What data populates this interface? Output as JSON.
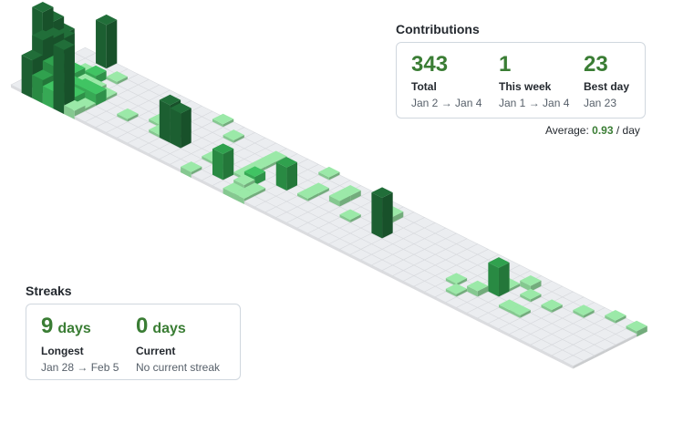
{
  "contributions": {
    "title": "Contributions",
    "total": {
      "value": "343",
      "label": "Total",
      "range": "Jan 2 → Jan 4"
    },
    "this_week": {
      "value": "1",
      "label": "This week",
      "range": "Jan 1 → Jan 4"
    },
    "best_day": {
      "value": "23",
      "label": "Best day",
      "date": "Jan 23"
    },
    "average": {
      "label": "Average:",
      "value": "0.93",
      "unit": "/ day"
    }
  },
  "streaks": {
    "title": "Streaks",
    "longest": {
      "value": "9",
      "unit": "days",
      "label": "Longest",
      "range": "Jan 28 → Feb 5"
    },
    "current": {
      "value": "0",
      "unit": "days",
      "label": "Current",
      "range": "No current streak"
    }
  },
  "colors": {
    "empty": "#ebedf0",
    "level1": "#9be9a8",
    "level2": "#40c463",
    "level3": "#30a14e",
    "level4": "#216e39"
  },
  "chart_data": {
    "type": "heatmap",
    "weeks": 53,
    "days_per_week": 7,
    "cells": [
      [
        0,
        2,
        23
      ],
      [
        0,
        3,
        18
      ],
      [
        0,
        4,
        12
      ],
      [
        1,
        0,
        12
      ],
      [
        1,
        1,
        17
      ],
      [
        1,
        2,
        16
      ],
      [
        1,
        3,
        14
      ],
      [
        2,
        0,
        7
      ],
      [
        2,
        1,
        10
      ],
      [
        2,
        2,
        9
      ],
      [
        2,
        3,
        4
      ],
      [
        2,
        4,
        2
      ],
      [
        2,
        6,
        15
      ],
      [
        3,
        0,
        5
      ],
      [
        3,
        1,
        6
      ],
      [
        3,
        2,
        3
      ],
      [
        3,
        3,
        2
      ],
      [
        3,
        4,
        3
      ],
      [
        4,
        0,
        21
      ],
      [
        4,
        1,
        3
      ],
      [
        4,
        2,
        4
      ],
      [
        4,
        3,
        2
      ],
      [
        4,
        5,
        1
      ],
      [
        5,
        0,
        2
      ],
      [
        5,
        1,
        1
      ],
      [
        5,
        2,
        4
      ],
      [
        5,
        3,
        1
      ],
      [
        8,
        2,
        1
      ],
      [
        10,
        3,
        1
      ],
      [
        10,
        5,
        1
      ],
      [
        11,
        2,
        1
      ],
      [
        11,
        4,
        1
      ],
      [
        12,
        2,
        13
      ],
      [
        12,
        3,
        1
      ],
      [
        13,
        2,
        12
      ],
      [
        13,
        6,
        1
      ],
      [
        15,
        5,
        1
      ],
      [
        16,
        0,
        1
      ],
      [
        16,
        2,
        1
      ],
      [
        17,
        2,
        2
      ],
      [
        18,
        1,
        9
      ],
      [
        19,
        2,
        1
      ],
      [
        19,
        3,
        1
      ],
      [
        19,
        4,
        1
      ],
      [
        19,
        5,
        1
      ],
      [
        20,
        0,
        1
      ],
      [
        20,
        1,
        2
      ],
      [
        20,
        2,
        3
      ],
      [
        21,
        0,
        1
      ],
      [
        21,
        1,
        1
      ],
      [
        21,
        4,
        1
      ],
      [
        22,
        3,
        8
      ],
      [
        23,
        6,
        1
      ],
      [
        24,
        3,
        1
      ],
      [
        24,
        4,
        1
      ],
      [
        26,
        4,
        2
      ],
      [
        26,
        5,
        2
      ],
      [
        28,
        3,
        1
      ],
      [
        30,
        5,
        2
      ],
      [
        31,
        3,
        14
      ],
      [
        39,
        2,
        1
      ],
      [
        40,
        1,
        1
      ],
      [
        41,
        2,
        2
      ],
      [
        42,
        3,
        10
      ],
      [
        42,
        4,
        1
      ],
      [
        43,
        5,
        2
      ],
      [
        44,
        2,
        1
      ],
      [
        44,
        4,
        1
      ],
      [
        45,
        2,
        1
      ],
      [
        46,
        4,
        1
      ],
      [
        48,
        5,
        1
      ],
      [
        50,
        6,
        1
      ],
      [
        52,
        6,
        1
      ]
    ]
  }
}
